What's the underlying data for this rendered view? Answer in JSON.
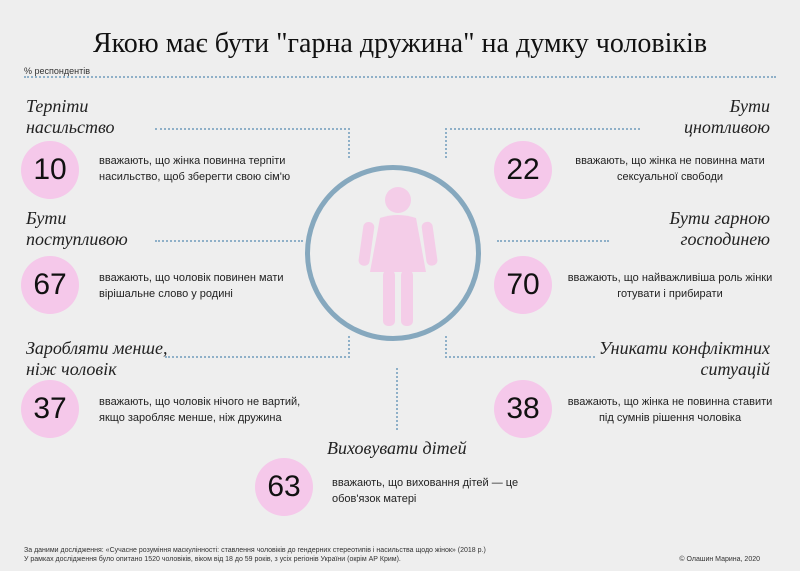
{
  "title": "Якою має бути \"гарна дружина\" на думку чоловіків",
  "unit_label": "% респондентів",
  "items": {
    "violence": {
      "heading_1": "Терпіти",
      "heading_2": "насильство",
      "value": "10",
      "desc_1": "вважають, що жінка повинна терпіти",
      "desc_2": "насильство, щоб зберегти свою сім'ю"
    },
    "chaste": {
      "heading_1": "Бути",
      "heading_2": "цнотливою",
      "value": "22",
      "desc_1": "вважають, що жінка не повинна мати",
      "desc_2": "сексуальної свободи"
    },
    "obedient": {
      "heading_1": "Бути",
      "heading_2": "поступливою",
      "value": "67",
      "desc_1": "вважають, що чоловік повинен мати",
      "desc_2": "вірішальне слово у родині"
    },
    "housewife": {
      "heading_1": "Бути гарною",
      "heading_2": "господинею",
      "value": "70",
      "desc_1": "вважають, що найважливіша роль жінки",
      "desc_2": "готувати і прибирати"
    },
    "earn_less": {
      "heading_1": "Заробляти менше,",
      "heading_2": "ніж чоловік",
      "value": "37",
      "desc_1": "вважають, що чоловік нічого не вартий,",
      "desc_2": "якщо заробляє менше, ніж дружина"
    },
    "no_conflict": {
      "heading_1": "Уникати конфліктних",
      "heading_2": "ситуацій",
      "value": "38",
      "desc_1": "вважають, що жінка не повинна ставити",
      "desc_2": "під сумнів рішення чоловіка"
    },
    "children": {
      "heading_1": "Виховувати дітей",
      "value": "63",
      "desc_1": "вважають, що виховання дітей — це",
      "desc_2": "обов'язок матері"
    }
  },
  "source_1": "За даними дослідження: «Сучасне розуміння маскулінності: ставлення чоловіків до гендерних стереотипів і насильства щодо жінок» (2018 р.)",
  "source_2": "У рамках дослідження було опитано 1520 чоловіків, віком від 18 до 59 років, з усіх регіонів України (окрім АР Крим).",
  "copyright": "© Олашин Марина, 2020",
  "colors": {
    "accent_pink": "#f5c8ea",
    "line_blue": "#8fb0c8",
    "circle_blue": "#86a8be",
    "figure_pink": "#f4cde8",
    "background": "#eeeeee"
  },
  "icon": "woman-figure-icon"
}
